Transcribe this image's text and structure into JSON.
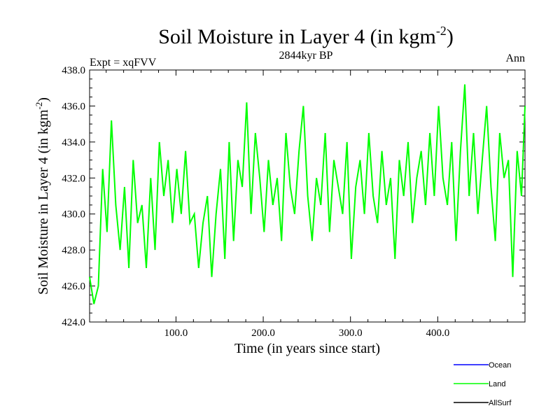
{
  "chart_data": {
    "type": "line",
    "title": "Soil Moisture in Layer 4 (in kgm",
    "title_superscript": "-2",
    "title_close": ")",
    "subtitle": "2844kyr BP",
    "left_label": "Expt = xqFVV",
    "right_label": "Ann",
    "xlabel": "Time (in years since start)",
    "ylabel": "Soil Moisture in Layer 4 (in kgm",
    "ylabel_superscript": "-2",
    "ylabel_close": ")",
    "xlim": [
      1,
      500
    ],
    "ylim": [
      424,
      438
    ],
    "x_ticks": [
      {
        "value": 100,
        "label": "100.0"
      },
      {
        "value": 200,
        "label": "200.0"
      },
      {
        "value": 300,
        "label": "300.0"
      },
      {
        "value": 400,
        "label": "400.0"
      }
    ],
    "y_ticks": [
      {
        "value": 424,
        "label": "424.0"
      },
      {
        "value": 426,
        "label": "426.0"
      },
      {
        "value": 428,
        "label": "428.0"
      },
      {
        "value": 430,
        "label": "430.0"
      },
      {
        "value": 432,
        "label": "432.0"
      },
      {
        "value": 434,
        "label": "434.0"
      },
      {
        "value": 436,
        "label": "436.0"
      },
      {
        "value": 438,
        "label": "438.0"
      }
    ],
    "legend": [
      {
        "name": "Ocean",
        "color": "#0000ff"
      },
      {
        "name": "Land",
        "color": "#00ff00"
      },
      {
        "name": "AllSurf",
        "color": "#000000"
      }
    ],
    "series": [
      {
        "name": "Land",
        "color": "#00ff00",
        "x": [
          1,
          6,
          11,
          16,
          21,
          26,
          31,
          36,
          41,
          46,
          51,
          56,
          61,
          66,
          71,
          76,
          81,
          86,
          91,
          96,
          101,
          106,
          111,
          116,
          121,
          126,
          131,
          136,
          141,
          146,
          151,
          156,
          161,
          166,
          171,
          176,
          181,
          186,
          191,
          196,
          201,
          206,
          211,
          216,
          221,
          226,
          231,
          236,
          241,
          246,
          251,
          256,
          261,
          266,
          271,
          276,
          281,
          286,
          291,
          296,
          301,
          306,
          311,
          316,
          321,
          326,
          331,
          336,
          341,
          346,
          351,
          356,
          361,
          366,
          371,
          376,
          381,
          386,
          391,
          396,
          401,
          406,
          411,
          416,
          421,
          426,
          431,
          436,
          441,
          446,
          451,
          456,
          461,
          466,
          471,
          476,
          481,
          486,
          491,
          496,
          500
        ],
        "values": [
          426.5,
          425.0,
          426.0,
          432.5,
          429.0,
          435.2,
          430.5,
          428.0,
          431.5,
          427.0,
          433.0,
          429.5,
          430.5,
          427.0,
          432.0,
          428.0,
          434.0,
          431.0,
          433.0,
          429.5,
          432.5,
          430.0,
          433.5,
          429.5,
          430.0,
          427.0,
          429.5,
          431.0,
          426.5,
          430.0,
          432.5,
          427.5,
          434.0,
          428.5,
          433.0,
          431.5,
          436.2,
          430.0,
          434.5,
          432.0,
          429.0,
          433.0,
          430.5,
          432.0,
          428.5,
          434.5,
          431.5,
          430.0,
          433.5,
          436.0,
          431.0,
          428.5,
          432.0,
          430.5,
          434.5,
          429.0,
          433.0,
          431.5,
          430.0,
          434.0,
          427.5,
          431.5,
          433.0,
          430.0,
          434.5,
          431.0,
          429.5,
          433.5,
          430.5,
          432.0,
          427.5,
          433.0,
          431.0,
          434.0,
          429.5,
          432.0,
          433.5,
          430.5,
          434.5,
          431.0,
          436.0,
          432.0,
          430.5,
          434.0,
          428.5,
          433.5,
          437.2,
          431.0,
          434.5,
          430.0,
          433.0,
          436.0,
          431.5,
          428.5,
          434.5,
          432.0,
          433.0,
          426.5,
          433.5,
          431.0,
          436.0
        ]
      }
    ]
  }
}
